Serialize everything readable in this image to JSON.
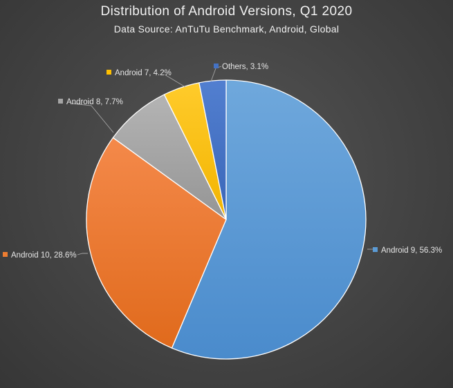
{
  "chart_data": {
    "type": "pie",
    "title": "Distribution of Android Versions, Q1 2020",
    "subtitle": "Data Source: AnTuTu Benchmark, Android, Global",
    "slices": [
      {
        "name": "Android 9",
        "value": 56.3,
        "label": "Android 9, 56.3%",
        "color": "#5b9bd5"
      },
      {
        "name": "Android 10",
        "value": 28.6,
        "label": "Android 10, 28.6%",
        "color": "#ed7d31"
      },
      {
        "name": "Android 8",
        "value": 7.7,
        "label": "Android 8, 7.7%",
        "color": "#a5a5a5"
      },
      {
        "name": "Android 7",
        "value": 4.2,
        "label": "Android 7, 4.2%",
        "color": "#ffc000"
      },
      {
        "name": "Others",
        "value": 3.1,
        "label": "Others, 3.1%",
        "color": "#4472c4"
      }
    ],
    "legend": "none",
    "data_labels": "outside with leader lines"
  }
}
